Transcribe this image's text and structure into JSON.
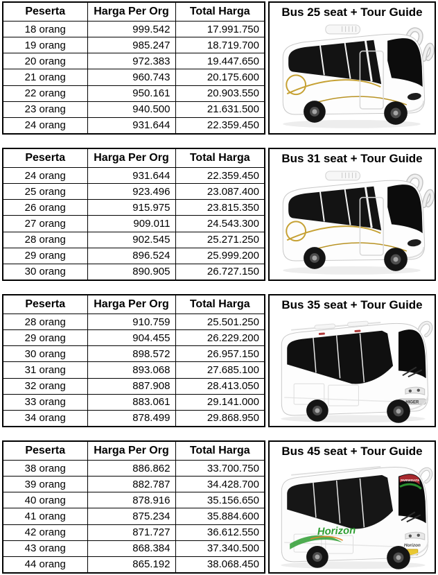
{
  "page": {
    "background": "#ffffff",
    "text_color": "#000000",
    "border_color": "#000000",
    "accent_gold": "#c6a133",
    "accent_green": "#2f9e33",
    "accent_red": "#a8292e"
  },
  "sections": [
    {
      "bus_title": "Bus 25 seat + Tour Guide",
      "bus_image": "white-minibus-front-quarter-view",
      "columns": [
        "Peserta",
        "Harga Per Org",
        "Total Harga"
      ],
      "rows": [
        [
          "18 orang",
          "999.542",
          "17.991.750"
        ],
        [
          "19 orang",
          "985.247",
          "18.719.700"
        ],
        [
          "20 orang",
          "972.383",
          "19.447.650"
        ],
        [
          "21 orang",
          "960.743",
          "20.175.600"
        ],
        [
          "22 orang",
          "950.161",
          "20.903.550"
        ],
        [
          "23 orang",
          "940.500",
          "21.631.500"
        ],
        [
          "24 orang",
          "931.644",
          "22.359.450"
        ]
      ]
    },
    {
      "bus_title": "Bus 31 seat + Tour Guide",
      "bus_image": "white-minibus-front-quarter-view",
      "columns": [
        "Peserta",
        "Harga Per Org",
        "Total Harga"
      ],
      "rows": [
        [
          "24 orang",
          "931.644",
          "22.359.450"
        ],
        [
          "25 orang",
          "923.496",
          "23.087.400"
        ],
        [
          "26 orang",
          "915.975",
          "23.815.350"
        ],
        [
          "27 orang",
          "909.011",
          "24.543.300"
        ],
        [
          "28 orang",
          "902.545",
          "25.271.250"
        ],
        [
          "29 orang",
          "896.524",
          "25.999.200"
        ],
        [
          "30 orang",
          "890.905",
          "26.727.150"
        ]
      ]
    },
    {
      "bus_title": "Bus 35 seat + Tour Guide",
      "bus_image": "white-coach-bus-front-quarter-view",
      "bus_front_text": "HIGER",
      "columns": [
        "Peserta",
        "Harga Per Org",
        "Total Harga"
      ],
      "rows": [
        [
          "28 orang",
          "910.759",
          "25.501.250"
        ],
        [
          "29 orang",
          "904.455",
          "26.229.200"
        ],
        [
          "30 orang",
          "898.572",
          "26.957.150"
        ],
        [
          "31 orang",
          "893.068",
          "27.685.100"
        ],
        [
          "32 orang",
          "887.908",
          "28.413.050"
        ],
        [
          "33 orang",
          "883.061",
          "29.141.000"
        ],
        [
          "34 orang",
          "878.499",
          "29.868.950"
        ]
      ]
    },
    {
      "bus_title": "Bus 45 seat + Tour Guide",
      "bus_image": "white-coach-bus-horizon-front-quarter-view",
      "bus_side_text": "Horizon",
      "bus_front_text": "Horizon",
      "bus_windshield_text": "PARIWISATA",
      "columns": [
        "Peserta",
        "Harga Per Org",
        "Total Harga"
      ],
      "rows": [
        [
          "38 orang",
          "886.862",
          "33.700.750"
        ],
        [
          "39 orang",
          "882.787",
          "34.428.700"
        ],
        [
          "40 orang",
          "878.916",
          "35.156.650"
        ],
        [
          "41 orang",
          "875.234",
          "35.884.600"
        ],
        [
          "42 orang",
          "871.727",
          "36.612.550"
        ],
        [
          "43 orang",
          "868.384",
          "37.340.500"
        ],
        [
          "44 orang",
          "865.192",
          "38.068.450"
        ]
      ]
    }
  ]
}
